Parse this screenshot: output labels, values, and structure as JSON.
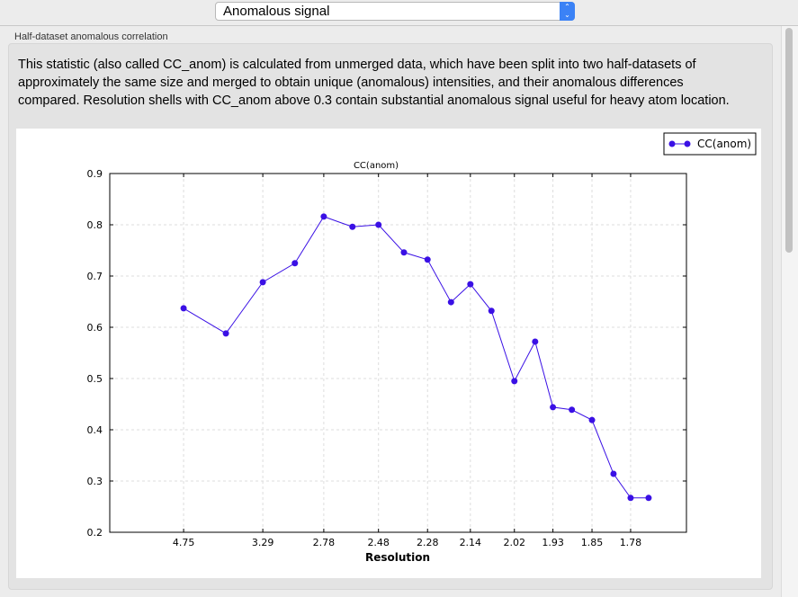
{
  "toolbar": {
    "selected_view": "Anomalous signal",
    "selector_icon": "up-down-chevron-icon"
  },
  "section": {
    "title": "Half-dataset anomalous correlation",
    "description": "This statistic (also called CC_anom) is calculated from unmerged data, which have been split into two half-datasets of approximately the same size and merged to obtain unique (anomalous) intensities, and their anomalous differences compared.  Resolution shells with CC_anom above 0.3 contain substantial anomalous signal useful for heavy atom location."
  },
  "chart_data": {
    "type": "line",
    "title": "CC(anom)",
    "xlabel": "Resolution",
    "ylabel": "",
    "x_scale": "inverse-square (1/d^2), labelled in resolution",
    "xticks": [
      "4.75",
      "3.29",
      "2.78",
      "2.48",
      "2.28",
      "2.14",
      "2.02",
      "1.93",
      "1.85",
      "1.78"
    ],
    "ylim": [
      0.2,
      0.9
    ],
    "yticks": [
      "0.2",
      "0.3",
      "0.4",
      "0.5",
      "0.6",
      "0.7",
      "0.8",
      "0.9"
    ],
    "grid": true,
    "legend": "top-right",
    "series": [
      {
        "name": "CC(anom)",
        "color": "#3a10e5",
        "x": [
          4.75,
          3.78,
          3.29,
          2.99,
          2.78,
          2.61,
          2.48,
          2.37,
          2.28,
          2.2,
          2.14,
          2.08,
          2.02,
          1.97,
          1.93,
          1.89,
          1.85,
          1.81,
          1.78,
          1.75
        ],
        "y": [
          0.637,
          0.588,
          0.688,
          0.725,
          0.816,
          0.796,
          0.8,
          0.746,
          0.732,
          0.649,
          0.684,
          0.632,
          0.495,
          0.572,
          0.444,
          0.439,
          0.419,
          0.314,
          0.267,
          0.267
        ]
      }
    ]
  }
}
